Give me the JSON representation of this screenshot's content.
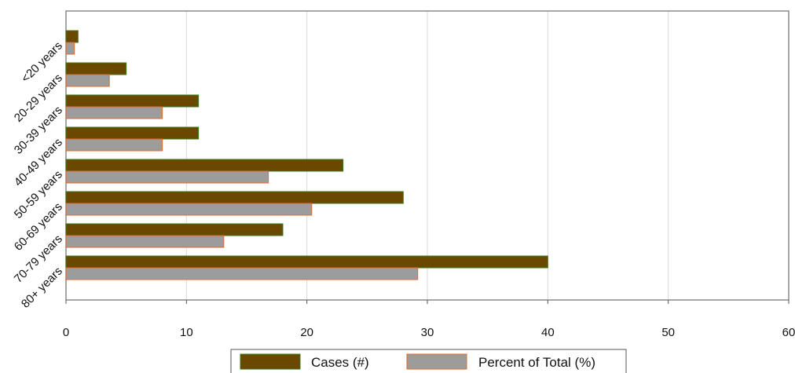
{
  "chart_data": {
    "type": "bar",
    "orientation": "horizontal",
    "categories": [
      "<20 years",
      "20-29 years",
      "30-39 years",
      "40-49 years",
      "50-59 years",
      "60-69 years",
      "70-79 years",
      "80+ years"
    ],
    "series": [
      {
        "name": "Cases (#)",
        "values": [
          1,
          5,
          11,
          11,
          23,
          28,
          18,
          40
        ],
        "color": "#6b4800",
        "edge": "#3b7a1a"
      },
      {
        "name": "Percent of Total (%)",
        "values": [
          0.7,
          3.6,
          8.0,
          8.0,
          16.8,
          20.4,
          13.1,
          29.2
        ],
        "color": "#9c9c9c",
        "edge": "#e06a2c"
      }
    ],
    "x_ticks": [
      "0",
      "10",
      "20",
      "30",
      "40",
      "50",
      "60"
    ],
    "xlim": [
      0,
      60
    ],
    "grid": true,
    "legend_position": "bottom"
  }
}
